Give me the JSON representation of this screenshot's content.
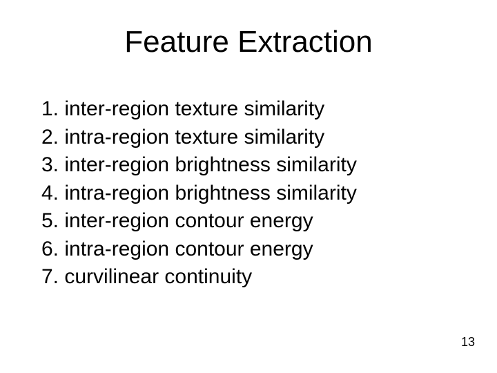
{
  "title": "Feature Extraction",
  "items": [
    {
      "n": "1.",
      "text": "inter-region texture similarity"
    },
    {
      "n": "2.",
      "text": "intra-region texture similarity"
    },
    {
      "n": "3.",
      "text": "inter-region brightness similarity"
    },
    {
      "n": "4.",
      "text": "intra-region brightness similarity"
    },
    {
      "n": "5.",
      "text": "inter-region contour energy"
    },
    {
      "n": "6.",
      "text": "intra-region contour energy"
    },
    {
      "n": "7.",
      "text": "curvilinear continuity"
    }
  ],
  "page_number": "13",
  "style": {
    "background_color": "#ffffff",
    "text_color": "#000000",
    "title_fontsize": 44,
    "body_fontsize": 30,
    "pagenum_fontsize": 18,
    "font_family": "Arial"
  }
}
